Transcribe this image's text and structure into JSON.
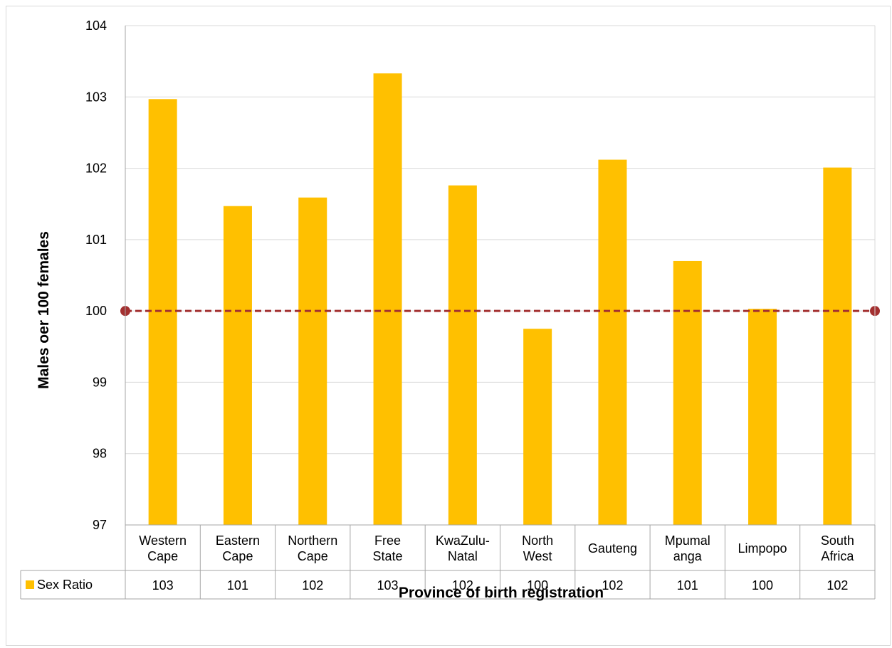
{
  "chart_data": {
    "type": "bar",
    "title": "",
    "xlabel": "Province of birth registration",
    "ylabel": "Males oer 100 females",
    "ylim": [
      97,
      104
    ],
    "yticks": [
      97,
      98,
      99,
      100,
      101,
      102,
      103,
      104
    ],
    "grid": true,
    "categories": [
      [
        "Western",
        "Cape"
      ],
      [
        "Eastern",
        "Cape"
      ],
      [
        "Northern",
        "Cape"
      ],
      [
        "Free",
        "State"
      ],
      [
        "KwaZulu-",
        "Natal"
      ],
      [
        "North",
        "West"
      ],
      [
        "Gauteng"
      ],
      [
        "Mpumal",
        "anga"
      ],
      [
        "Limpopo"
      ],
      [
        "South",
        "Africa"
      ]
    ],
    "series": [
      {
        "name": "Sex Ratio",
        "color": "#FFC000",
        "values": [
          102.97,
          101.47,
          101.59,
          103.33,
          101.76,
          99.75,
          102.12,
          100.7,
          100.03,
          102.01
        ],
        "table_labels": [
          "103",
          "101",
          "102",
          "103",
          "102",
          "100",
          "102",
          "101",
          "100",
          "102"
        ]
      }
    ],
    "reference_line": {
      "value": 100,
      "color": "#A33030",
      "style": "dashed"
    }
  }
}
